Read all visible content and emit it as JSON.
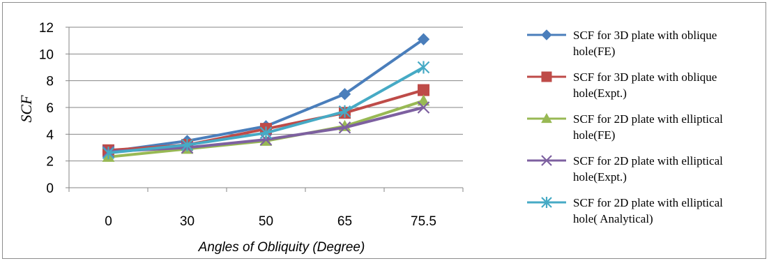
{
  "chart_data": {
    "type": "line",
    "categories": [
      "0",
      "30",
      "50",
      "65",
      "75.5"
    ],
    "xlabel": "Angles of Obliquity (Degree)",
    "ylabel": "SCF",
    "ylim": [
      0,
      12
    ],
    "yticks": [
      "0",
      "2",
      "4",
      "6",
      "8",
      "10",
      "12"
    ],
    "grid": "horizontal major gridlines",
    "legend_position": "right",
    "series": [
      {
        "name_lines": [
          "SCF for 3D plate with oblique",
          "hole(FE)"
        ],
        "color": "#4a7ebb",
        "marker": "diamond",
        "values": [
          2.7,
          3.5,
          4.6,
          7.0,
          11.1
        ]
      },
      {
        "name_lines": [
          "SCF for 3D plate with oblique",
          "hole(Expt.)"
        ],
        "color": "#be4b48",
        "marker": "square",
        "values": [
          2.8,
          3.2,
          4.4,
          5.6,
          7.3
        ]
      },
      {
        "name_lines": [
          "SCF for 2D plate with elliptical",
          "hole(FE)"
        ],
        "color": "#98b954",
        "marker": "triangle",
        "values": [
          2.3,
          2.9,
          3.5,
          4.6,
          6.5
        ]
      },
      {
        "name_lines": [
          "SCF for 2D plate with elliptical",
          "hole(Expt.)"
        ],
        "color": "#7d60a0",
        "marker": "x",
        "values": [
          2.7,
          3.0,
          3.6,
          4.5,
          6.0
        ]
      },
      {
        "name_lines": [
          "SCF for 2D plate with elliptical",
          "hole( Analytical)"
        ],
        "color": "#46aac5",
        "marker": "star",
        "values": [
          2.6,
          3.2,
          4.1,
          5.7,
          9.0
        ]
      }
    ]
  }
}
